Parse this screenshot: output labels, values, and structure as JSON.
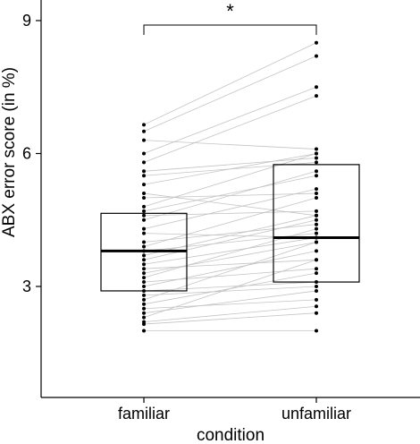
{
  "chart_data": {
    "type": "box",
    "xlabel": "condition",
    "ylabel": "ABX error score (in %)",
    "categories": [
      "familiar",
      "unfamiliar"
    ],
    "ylim": [
      0,
      9
    ],
    "yticks": [
      3,
      6,
      9
    ],
    "grid": false,
    "significance": {
      "between": [
        "familiar",
        "unfamiliar"
      ],
      "label": "*"
    },
    "boxes": [
      {
        "category": "familiar",
        "q1": 2.9,
        "median": 3.8,
        "q3": 4.65
      },
      {
        "category": "unfamiliar",
        "q1": 3.1,
        "median": 4.1,
        "q3": 5.75
      }
    ],
    "paired": [
      [
        2.0,
        2.0
      ],
      [
        2.15,
        2.4
      ],
      [
        2.2,
        2.55
      ],
      [
        2.3,
        3.6
      ],
      [
        2.4,
        2.9
      ],
      [
        2.5,
        2.7
      ],
      [
        2.6,
        3.3
      ],
      [
        2.7,
        4.0
      ],
      [
        2.8,
        3.0
      ],
      [
        2.9,
        3.1
      ],
      [
        3.0,
        3.8
      ],
      [
        3.1,
        3.4
      ],
      [
        3.2,
        4.3
      ],
      [
        3.3,
        4.0
      ],
      [
        3.4,
        3.6
      ],
      [
        3.5,
        4.1
      ],
      [
        3.6,
        4.5
      ],
      [
        3.7,
        4.6
      ],
      [
        3.8,
        4.2
      ],
      [
        3.9,
        5.0
      ],
      [
        4.0,
        4.4
      ],
      [
        4.2,
        4.1
      ],
      [
        4.3,
        5.2
      ],
      [
        4.5,
        5.6
      ],
      [
        4.6,
        4.7
      ],
      [
        4.7,
        5.5
      ],
      [
        4.8,
        6.0
      ],
      [
        5.0,
        5.1
      ],
      [
        5.1,
        4.6
      ],
      [
        5.3,
        6.0
      ],
      [
        5.5,
        5.8
      ],
      [
        5.6,
        5.9
      ],
      [
        5.8,
        7.3
      ],
      [
        6.0,
        7.5
      ],
      [
        6.3,
        6.1
      ],
      [
        6.5,
        8.2
      ],
      [
        6.65,
        8.5
      ]
    ]
  }
}
